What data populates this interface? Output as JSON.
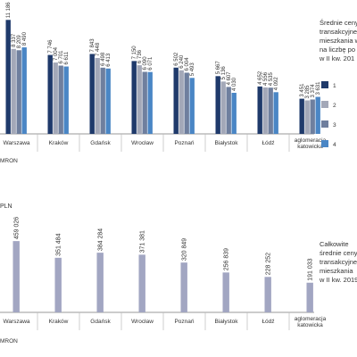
{
  "chart_data": [
    {
      "type": "bar",
      "title_lines": [
        "Średnie ceny",
        "transakcyjne",
        "mieszkania w",
        "na liczbę po",
        "w II kw. 201"
      ],
      "source": "MRON",
      "categories": [
        "Warszawa",
        "Kraków",
        "Gdańsk",
        "Wrocław",
        "Poznań",
        "Białystok",
        "Łódź",
        "aglomeracja katowicka"
      ],
      "series": [
        {
          "name": "1",
          "color": "#1f3a6b",
          "values": [
            11186,
            7746,
            7843,
            7150,
            6502,
            5667,
            4652,
            3451
          ],
          "value_labels": [
            "11 186",
            "7 746",
            "7 843",
            "7 150",
            "6 502",
            "5 667",
            "4 652",
            "3 451"
          ]
        },
        {
          "name": "2",
          "color": "#a3a8b8",
          "values": [
            8337,
            7004,
            7448,
            6736,
            6240,
            5136,
            4556,
            3285
          ],
          "value_labels": [
            "8 337",
            "7 004",
            "7 448",
            "6 736",
            "6 240",
            "5 136",
            "4 556",
            "3 285"
          ]
        },
        {
          "name": "3",
          "color": "#6f7f9e",
          "values": [
            8209,
            6701,
            6498,
            6090,
            6004,
            4607,
            4535,
            3374
          ],
          "value_labels": [
            "8 209",
            "6 701",
            "6 498",
            "6 090",
            "6 004",
            "4 607",
            "4 535",
            "3 374"
          ]
        },
        {
          "name": "4",
          "color": "#4a86c5",
          "values": [
            8490,
            6611,
            6413,
            6071,
            5493,
            4030,
            4092,
            3631
          ],
          "value_labels": [
            "8 490",
            "6 611",
            "6 413",
            "6 071",
            "5 493",
            "4 030",
            "4 092",
            "3 631"
          ]
        }
      ],
      "ylim": [
        0,
        12000
      ]
    },
    {
      "type": "bar",
      "title_lines": [
        "Całkowite",
        "średnie ceny",
        "transakcyjne",
        "mieszkania",
        "w II kw. 2019"
      ],
      "y_label": "PLN",
      "source": "MRON",
      "categories": [
        "Warszawa",
        "Kraków",
        "Gdańsk",
        "Wrocław",
        "Poznań",
        "Białystok",
        "Łódź",
        "aglomeracja katowicka"
      ],
      "series": [
        {
          "color": "#a2a6c2",
          "values": [
            459026,
            351484,
            384284,
            371381,
            320849,
            256839,
            228252,
            191033
          ],
          "value_labels": [
            "459 026",
            "351 484",
            "384 284",
            "371 381",
            "320 849",
            "256 839",
            "228 252",
            "191 033"
          ]
        }
      ],
      "ylim": [
        0,
        500000
      ]
    }
  ]
}
